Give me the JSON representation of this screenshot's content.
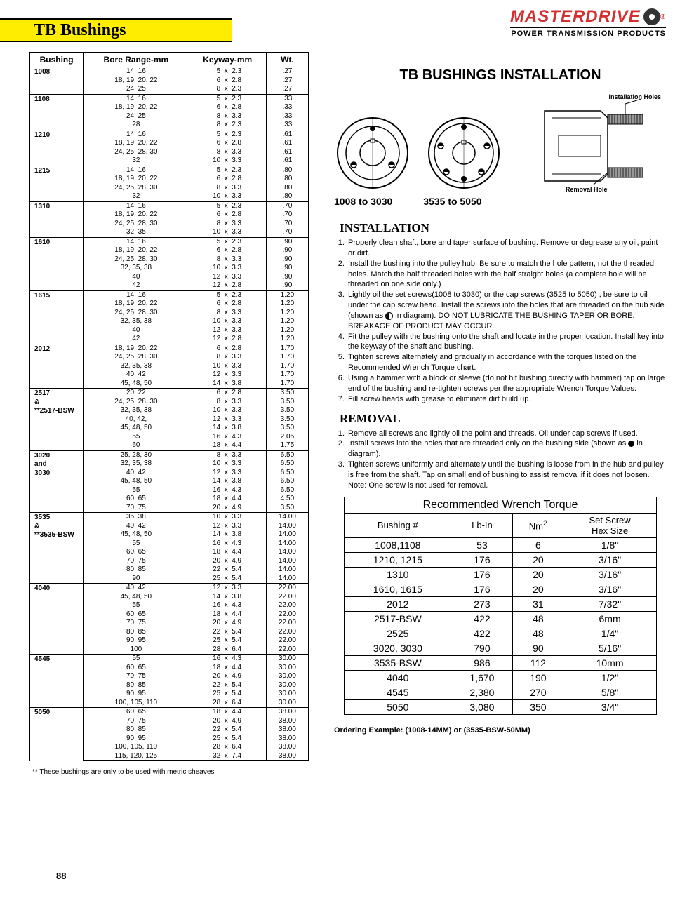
{
  "page_number": "88",
  "title": "TB  Bushings",
  "brand": {
    "name": "MASTERDRIVE",
    "tagline": "POWER TRANSMISSION PRODUCTS"
  },
  "columns": [
    "Bushing",
    "Bore Range-mm",
    "Keyway-mm",
    "Wt."
  ],
  "spec_groups": [
    {
      "bushing": "1008",
      "rows": [
        {
          "bore": "14,  16",
          "kw": "5",
          "kh": "2.3",
          "wt": ".27"
        },
        {
          "bore": "18, 19, 20, 22",
          "kw": "6",
          "kh": "2.8",
          "wt": ".27"
        },
        {
          "bore": "24, 25",
          "kw": "8",
          "kh": "2.3",
          "wt": ".27"
        }
      ]
    },
    {
      "bushing": "1108",
      "rows": [
        {
          "bore": "14, 16",
          "kw": "5",
          "kh": "2.3",
          "wt": ".33"
        },
        {
          "bore": "18, 19, 20, 22",
          "kw": "6",
          "kh": "2.8",
          "wt": ".33"
        },
        {
          "bore": "24, 25",
          "kw": "8",
          "kh": "3.3",
          "wt": ".33"
        },
        {
          "bore": "28",
          "kw": "8",
          "kh": "2.3",
          "wt": ".33"
        }
      ]
    },
    {
      "bushing": "1210",
      "rows": [
        {
          "bore": "14, 16",
          "kw": "5",
          "kh": "2.3",
          "wt": ".61"
        },
        {
          "bore": "18, 19, 20, 22",
          "kw": "6",
          "kh": "2.8",
          "wt": ".61"
        },
        {
          "bore": "24, 25, 28, 30",
          "kw": "8",
          "kh": "3.3",
          "wt": ".61"
        },
        {
          "bore": "32",
          "kw": "10",
          "kh": "3.3",
          "wt": ".61"
        }
      ]
    },
    {
      "bushing": "1215",
      "rows": [
        {
          "bore": "14, 16",
          "kw": "5",
          "kh": "2.3",
          "wt": ".80"
        },
        {
          "bore": "18, 19, 20, 22",
          "kw": "6",
          "kh": "2.8",
          "wt": ".80"
        },
        {
          "bore": "24, 25, 28, 30",
          "kw": "8",
          "kh": "3.3",
          "wt": ".80"
        },
        {
          "bore": "32",
          "kw": "10",
          "kh": "3.3",
          "wt": ".80"
        }
      ]
    },
    {
      "bushing": "1310",
      "rows": [
        {
          "bore": "14, 16",
          "kw": "5",
          "kh": "2.3",
          "wt": ".70"
        },
        {
          "bore": "18, 19, 20, 22",
          "kw": "6",
          "kh": "2.8",
          "wt": ".70"
        },
        {
          "bore": "24, 25, 28, 30",
          "kw": "8",
          "kh": "3.3",
          "wt": ".70"
        },
        {
          "bore": "32, 35",
          "kw": "10",
          "kh": "3.3",
          "wt": ".70"
        }
      ]
    },
    {
      "bushing": "1610",
      "rows": [
        {
          "bore": "14, 16",
          "kw": "5",
          "kh": "2.3",
          "wt": ".90"
        },
        {
          "bore": "18, 19, 20, 22",
          "kw": "6",
          "kh": "2.8",
          "wt": ".90"
        },
        {
          "bore": "24, 25, 28, 30",
          "kw": "8",
          "kh": "3.3",
          "wt": ".90"
        },
        {
          "bore": "32, 35, 38",
          "kw": "10",
          "kh": "3.3",
          "wt": ".90"
        },
        {
          "bore": "40",
          "kw": "12",
          "kh": "3.3",
          "wt": ".90"
        },
        {
          "bore": "42",
          "kw": "12",
          "kh": "2.8",
          "wt": ".90"
        }
      ]
    },
    {
      "bushing": "1615",
      "rows": [
        {
          "bore": "14, 16",
          "kw": "5",
          "kh": "2.3",
          "wt": "1.20"
        },
        {
          "bore": "18, 19, 20, 22",
          "kw": "6",
          "kh": "2.8",
          "wt": "1.20"
        },
        {
          "bore": "24, 25, 28, 30",
          "kw": "8",
          "kh": "3.3",
          "wt": "1.20"
        },
        {
          "bore": "32, 35, 38",
          "kw": "10",
          "kh": "3.3",
          "wt": "1.20"
        },
        {
          "bore": "40",
          "kw": "12",
          "kh": "3.3",
          "wt": "1.20"
        },
        {
          "bore": "42",
          "kw": "12",
          "kh": "2.8",
          "wt": "1.20"
        }
      ]
    },
    {
      "bushing": "2012",
      "rows": [
        {
          "bore": "18, 19, 20, 22",
          "kw": "6",
          "kh": "2.8",
          "wt": "1.70"
        },
        {
          "bore": "24, 25, 28, 30",
          "kw": "8",
          "kh": "3.3",
          "wt": "1.70"
        },
        {
          "bore": "32, 35, 38",
          "kw": "10",
          "kh": "3.3",
          "wt": "1.70"
        },
        {
          "bore": "40, 42",
          "kw": "12",
          "kh": "3.3",
          "wt": "1.70"
        },
        {
          "bore": "45, 48, 50",
          "kw": "14",
          "kh": "3.8",
          "wt": "1.70"
        }
      ]
    },
    {
      "bushing": "2517\n&\n**2517-BSW",
      "rows": [
        {
          "bore": "20, 22",
          "kw": "6",
          "kh": "2.8",
          "wt": "3.50"
        },
        {
          "bore": "24, 25, 28, 30",
          "kw": "8",
          "kh": "3.3",
          "wt": "3.50"
        },
        {
          "bore": "32, 35, 38",
          "kw": "10",
          "kh": "3.3",
          "wt": "3.50"
        },
        {
          "bore": "40, 42,",
          "kw": "12",
          "kh": "3.3",
          "wt": "3.50"
        },
        {
          "bore": "45, 48, 50",
          "kw": "14",
          "kh": "3.8",
          "wt": "3.50"
        },
        {
          "bore": "55",
          "kw": "16",
          "kh": "4.3",
          "wt": "2.05"
        },
        {
          "bore": "60",
          "kw": "18",
          "kh": "4.4",
          "wt": "1.75"
        }
      ]
    },
    {
      "bushing": "3020\nand\n3030",
      "rows": [
        {
          "bore": "25, 28, 30",
          "kw": "8",
          "kh": "3.3",
          "wt": "6.50"
        },
        {
          "bore": "32, 35, 38",
          "kw": "10",
          "kh": "3.3",
          "wt": "6.50"
        },
        {
          "bore": "40, 42",
          "kw": "12",
          "kh": "3.3",
          "wt": "6.50"
        },
        {
          "bore": "45, 48, 50",
          "kw": "14",
          "kh": "3.8",
          "wt": "6.50"
        },
        {
          "bore": "55",
          "kw": "16",
          "kh": "4.3",
          "wt": "6.50"
        },
        {
          "bore": "60, 65",
          "kw": "18",
          "kh": "4.4",
          "wt": "4.50"
        },
        {
          "bore": "70, 75",
          "kw": "20",
          "kh": "4.9",
          "wt": "3.50"
        }
      ]
    },
    {
      "bushing": "3535\n&\n**3535-BSW",
      "rows": [
        {
          "bore": "35, 38",
          "kw": "10",
          "kh": "3.3",
          "wt": "14.00"
        },
        {
          "bore": "40, 42",
          "kw": "12",
          "kh": "3.3",
          "wt": "14.00"
        },
        {
          "bore": "45, 48, 50",
          "kw": "14",
          "kh": "3.8",
          "wt": "14.00"
        },
        {
          "bore": "55",
          "kw": "16",
          "kh": "4.3",
          "wt": "14.00"
        },
        {
          "bore": "60, 65",
          "kw": "18",
          "kh": "4.4",
          "wt": "14.00"
        },
        {
          "bore": "70, 75",
          "kw": "20",
          "kh": "4.9",
          "wt": "14.00"
        },
        {
          "bore": "80, 85",
          "kw": "22",
          "kh": "5.4",
          "wt": "14.00"
        },
        {
          "bore": "90",
          "kw": "25",
          "kh": "5.4",
          "wt": "14.00"
        }
      ]
    },
    {
      "bushing": "4040",
      "rows": [
        {
          "bore": "40, 42",
          "kw": "12",
          "kh": "3.3",
          "wt": "22.00"
        },
        {
          "bore": "45, 48, 50",
          "kw": "14",
          "kh": "3.8",
          "wt": "22.00"
        },
        {
          "bore": "55",
          "kw": "16",
          "kh": "4.3",
          "wt": "22.00"
        },
        {
          "bore": "60, 65",
          "kw": "18",
          "kh": "4.4",
          "wt": "22.00"
        },
        {
          "bore": "70, 75",
          "kw": "20",
          "kh": "4.9",
          "wt": "22.00"
        },
        {
          "bore": "80, 85",
          "kw": "22",
          "kh": "5.4",
          "wt": "22.00"
        },
        {
          "bore": "90, 95",
          "kw": "25",
          "kh": "5.4",
          "wt": "22.00"
        },
        {
          "bore": "100",
          "kw": "28",
          "kh": "6.4",
          "wt": "22.00"
        }
      ]
    },
    {
      "bushing": "4545",
      "rows": [
        {
          "bore": "55",
          "kw": "16",
          "kh": "4.3",
          "wt": "30.00"
        },
        {
          "bore": "60, 65",
          "kw": "18",
          "kh": "4.4",
          "wt": "30.00"
        },
        {
          "bore": "70, 75",
          "kw": "20",
          "kh": "4.9",
          "wt": "30.00"
        },
        {
          "bore": "80, 85",
          "kw": "22",
          "kh": "5.4",
          "wt": "30.00"
        },
        {
          "bore": "90, 95",
          "kw": "25",
          "kh": "5.4",
          "wt": "30.00"
        },
        {
          "bore": "100, 105, 110",
          "kw": "28",
          "kh": "6.4",
          "wt": "30.00"
        }
      ]
    },
    {
      "bushing": "5050",
      "rows": [
        {
          "bore": "60, 65",
          "kw": "18",
          "kh": "4.4",
          "wt": "38.00"
        },
        {
          "bore": "70, 75",
          "kw": "20",
          "kh": "4.9",
          "wt": "38.00"
        },
        {
          "bore": "80, 85",
          "kw": "22",
          "kh": "5.4",
          "wt": "38.00"
        },
        {
          "bore": "90, 95",
          "kw": "25",
          "kh": "5.4",
          "wt": "38.00"
        },
        {
          "bore": "100, 105, 110",
          "kw": "28",
          "kh": "6.4",
          "wt": "38.00"
        },
        {
          "bore": "115, 120, 125",
          "kw": "32",
          "kh": "7.4",
          "wt": "38.00"
        }
      ]
    }
  ],
  "footnote": "**  These bushings are only to be used with metric sheaves",
  "install": {
    "title": "TB BUSHINGS INSTALLATION",
    "range_a": "1008 to 3030",
    "range_b": "3535 to 5050",
    "label_install_holes": "Installation Holes",
    "label_removal_hole": "Removal Hole",
    "h_install": "INSTALLATION",
    "h_removal": "REMOVAL",
    "install_steps": [
      "Properly clean shaft, bore and taper surface of bushing.  Remove or degrease any oil, paint or dirt.",
      "Install the bushing into the pulley hub.  Be sure to match the hole pattern, not the threaded holes.  Match the half threaded holes with the half straight holes (a complete  hole will be threaded on one side only.)",
      "Lightly oil the set screws(1008 to 3030) or the cap screws (3525 to 5050) , be sure to oil under the cap screw head.  Install the screws into the holes that are threaded on the hub side (shown as  __HALF__  in diagram).  DO NOT LUBRICATE THE BUSHING TAPER OR BORE.  BREAKAGE OF PRODUCT MAY OCCUR.",
      "Fit the pulley with the bushing onto the shaft and locate in the proper location.  Install key into the keyway of the shaft and bushing.",
      "Tighten screws alternately and gradually in accordance with the torques listed on the Recommended Wrench Torque chart.",
      "Using a hammer with a block or sleeve (do not hit bushing directly with hammer) tap on large end of the bushing and re-tighten screws per the appropriate Wrench Torque Values.",
      "Fill screw heads with grease to eliminate dirt build up."
    ],
    "removal_steps": [
      "Remove all screws and lightly oil the point and threads.  Oil under cap screws if used.",
      "Install screws into the holes that are threaded only on the bushing side (shown as  __DOT__  in diagram).",
      "Tighten screws uniformly and alternately until the bushing is loose from in the hub and pulley is free from the shaft.  Tap on small end of bushing to assist removal if it does not loosen.  Note:  One screw is not used for removal."
    ]
  },
  "torque": {
    "title": "Recommended Wrench Torque",
    "cols": [
      "Bushing #",
      "Lb-In",
      "Nm²",
      "Set Screw Hex Size"
    ],
    "rows": [
      [
        "1008,1108",
        "53",
        "6",
        "1/8\""
      ],
      [
        "1210, 1215",
        "176",
        "20",
        "3/16\""
      ],
      [
        "1310",
        "176",
        "20",
        "3/16\""
      ],
      [
        "1610, 1615",
        "176",
        "20",
        "3/16\""
      ],
      [
        "2012",
        "273",
        "31",
        "7/32\""
      ],
      [
        "2517-BSW",
        "422",
        "48",
        "6mm"
      ],
      [
        "2525",
        "422",
        "48",
        "1/4\""
      ],
      [
        "3020, 3030",
        "790",
        "90",
        "5/16\""
      ],
      [
        "3535-BSW",
        "986",
        "112",
        "10mm"
      ],
      [
        "4040",
        "1,670",
        "190",
        "1/2\""
      ],
      [
        "4545",
        "2,380",
        "270",
        "5/8\""
      ],
      [
        "5050",
        "3,080",
        "350",
        "3/4\""
      ]
    ]
  },
  "ordering": "Ordering Example:  (1008-14MM)  or  (3535-BSW-50MM)",
  "colors": {
    "title_bg": "#ffed00",
    "brand": "#d32f2f",
    "border": "#000000"
  }
}
